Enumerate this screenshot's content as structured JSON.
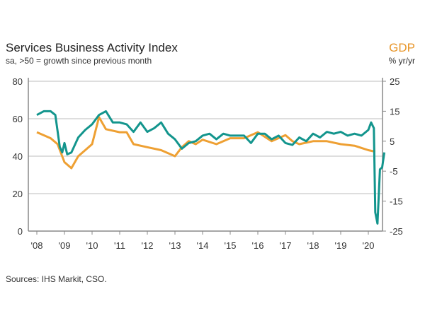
{
  "chart_data": {
    "type": "line",
    "title": "Services Business Activity Index",
    "subtitle": "sa, >50 = growth since previous month",
    "right_title": "GDP",
    "right_unit": "% yr/yr",
    "source": "Sources: IHS Markit, CSO.",
    "x_ticks": [
      "'08",
      "'09",
      "'10",
      "'11",
      "'12",
      "'13",
      "'14",
      "'15",
      "'16",
      "'17",
      "'18",
      "'19",
      "'20"
    ],
    "ylim": [
      0,
      80
    ],
    "y_ticks": [
      0,
      20,
      40,
      60,
      80
    ],
    "y2lim": [
      -25,
      25
    ],
    "y2_ticks": [
      -25,
      -15,
      -5,
      5,
      15,
      25
    ],
    "grid": true,
    "colors": {
      "services": "#13958d",
      "gdp": "#eea033"
    },
    "series": [
      {
        "axis": "left",
        "color_key": "services",
        "x": [
          2008.0,
          2008.25,
          2008.5,
          2008.67,
          2008.83,
          2008.92,
          2009.0,
          2009.1,
          2009.25,
          2009.5,
          2009.75,
          2010.0,
          2010.25,
          2010.5,
          2010.75,
          2011.0,
          2011.25,
          2011.5,
          2011.75,
          2012.0,
          2012.25,
          2012.5,
          2012.75,
          2013.0,
          2013.25,
          2013.5,
          2013.75,
          2014.0,
          2014.25,
          2014.5,
          2014.75,
          2015.0,
          2015.25,
          2015.5,
          2015.75,
          2016.0,
          2016.25,
          2016.5,
          2016.75,
          2017.0,
          2017.25,
          2017.5,
          2017.75,
          2018.0,
          2018.25,
          2018.5,
          2018.75,
          2019.0,
          2019.25,
          2019.5,
          2019.75,
          2020.0,
          2020.1,
          2020.2,
          2020.25,
          2020.33,
          2020.42,
          2020.5,
          2020.58
        ],
        "values": [
          62,
          64,
          64,
          62,
          45,
          42,
          47,
          41,
          42,
          50,
          54,
          57,
          62,
          64,
          58,
          58,
          57,
          53,
          58,
          53,
          55,
          58,
          52,
          49,
          44,
          47,
          48,
          51,
          52,
          49,
          52,
          51,
          51,
          51,
          47,
          52,
          52,
          49,
          51,
          47,
          46,
          50,
          48,
          52,
          50,
          53,
          52,
          53,
          51,
          52,
          51,
          54,
          58,
          55,
          10,
          4,
          33,
          34,
          42
        ]
      },
      {
        "axis": "right",
        "color_key": "gdp",
        "x": [
          2008.0,
          2008.5,
          2008.75,
          2009.0,
          2009.25,
          2009.5,
          2009.75,
          2010.0,
          2010.25,
          2010.5,
          2011.0,
          2011.25,
          2011.5,
          2012.0,
          2012.5,
          2013.0,
          2013.25,
          2013.5,
          2013.75,
          2014.0,
          2014.5,
          2015.0,
          2015.5,
          2016.0,
          2016.5,
          2017.0,
          2017.25,
          2017.5,
          2018.0,
          2018.5,
          2019.0,
          2019.5,
          2020.0,
          2020.25
        ],
        "values": [
          8,
          6,
          4,
          -2,
          -4,
          0,
          2,
          4,
          13,
          9,
          8,
          8,
          4,
          3,
          2,
          0,
          3,
          5,
          4,
          5.5,
          4,
          6,
          6,
          8,
          5,
          7,
          5,
          4,
          5,
          5,
          4,
          3.5,
          2,
          1.5
        ]
      }
    ]
  }
}
